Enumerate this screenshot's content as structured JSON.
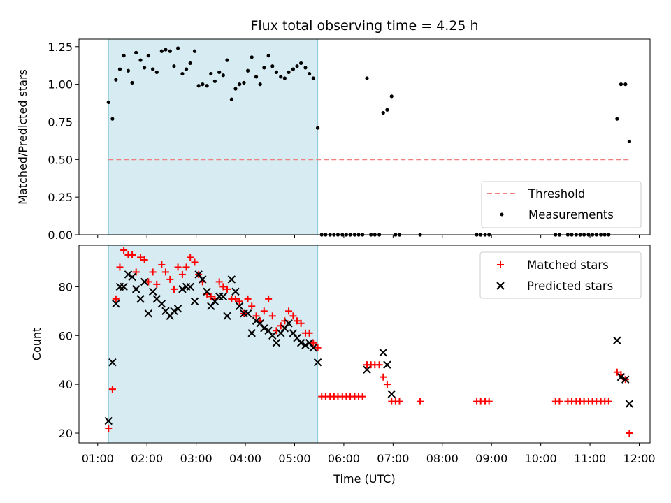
{
  "chart_data": [
    {
      "type": "scatter",
      "title": "Flux total observing time = 4.25 h",
      "xlabel": "",
      "ylabel": "Matched/Predicted stars",
      "xlim": [
        0.62,
        12.22
      ],
      "ylim": [
        0,
        1.3
      ],
      "yticks": [
        0,
        0.25,
        0.5,
        0.75,
        1.0,
        1.25
      ],
      "ytick_labels": [
        "0.00",
        "0.25",
        "0.50",
        "0.75",
        "1.00",
        "1.25"
      ],
      "shaded_span": [
        1.22,
        5.47
      ],
      "threshold": {
        "name": "Threshold",
        "value": 0.5,
        "x_range": [
          1.22,
          11.82
        ],
        "color": "#f08080"
      },
      "legend": [
        "Threshold",
        "Measurements"
      ],
      "legend_position": "lower-right",
      "series": [
        {
          "name": "Measurements",
          "color": "#000000",
          "points": [
            [
              1.22,
              0.88
            ],
            [
              1.3,
              0.77
            ],
            [
              1.37,
              1.03
            ],
            [
              1.45,
              1.1
            ],
            [
              1.53,
              1.19
            ],
            [
              1.62,
              1.09
            ],
            [
              1.7,
              1.01
            ],
            [
              1.78,
              1.21
            ],
            [
              1.87,
              1.16
            ],
            [
              1.95,
              1.11
            ],
            [
              2.03,
              1.19
            ],
            [
              2.12,
              1.1
            ],
            [
              2.2,
              1.08
            ],
            [
              2.3,
              1.22
            ],
            [
              2.38,
              1.23
            ],
            [
              2.47,
              1.22
            ],
            [
              2.55,
              1.12
            ],
            [
              2.63,
              1.24
            ],
            [
              2.72,
              1.07
            ],
            [
              2.8,
              1.1
            ],
            [
              2.88,
              1.14
            ],
            [
              2.97,
              1.22
            ],
            [
              3.05,
              0.99
            ],
            [
              3.13,
              1.0
            ],
            [
              3.22,
              0.99
            ],
            [
              3.3,
              1.07
            ],
            [
              3.38,
              1.02
            ],
            [
              3.47,
              1.08
            ],
            [
              3.55,
              1.06
            ],
            [
              3.63,
              1.16
            ],
            [
              3.72,
              0.9
            ],
            [
              3.8,
              0.97
            ],
            [
              3.88,
              1.0
            ],
            [
              3.97,
              1.01
            ],
            [
              4.05,
              1.09
            ],
            [
              4.13,
              1.18
            ],
            [
              4.22,
              1.05
            ],
            [
              4.3,
              1.0
            ],
            [
              4.38,
              1.11
            ],
            [
              4.47,
              1.19
            ],
            [
              4.55,
              1.12
            ],
            [
              4.63,
              1.08
            ],
            [
              4.72,
              1.05
            ],
            [
              4.8,
              1.04
            ],
            [
              4.88,
              1.08
            ],
            [
              4.97,
              1.1
            ],
            [
              5.05,
              1.12
            ],
            [
              5.13,
              1.14
            ],
            [
              5.22,
              1.11
            ],
            [
              5.3,
              1.07
            ],
            [
              5.38,
              1.04
            ],
            [
              5.47,
              0.71
            ],
            [
              5.55,
              0
            ],
            [
              5.63,
              0
            ],
            [
              5.72,
              0
            ],
            [
              5.8,
              0
            ],
            [
              5.88,
              0
            ],
            [
              5.97,
              0
            ],
            [
              6.05,
              0
            ],
            [
              6.13,
              0
            ],
            [
              6.22,
              0
            ],
            [
              6.3,
              0
            ],
            [
              6.38,
              0
            ],
            [
              6.47,
              1.04
            ],
            [
              6.55,
              0
            ],
            [
              6.63,
              0
            ],
            [
              6.72,
              0
            ],
            [
              6.8,
              0.81
            ],
            [
              6.88,
              0.83
            ],
            [
              6.97,
              0.92
            ],
            [
              7.05,
              0
            ],
            [
              7.13,
              0
            ],
            [
              7.55,
              0
            ],
            [
              8.7,
              0
            ],
            [
              8.78,
              0
            ],
            [
              8.87,
              0
            ],
            [
              8.95,
              0
            ],
            [
              10.3,
              0
            ],
            [
              10.38,
              0
            ],
            [
              10.55,
              0
            ],
            [
              10.63,
              0
            ],
            [
              10.72,
              0
            ],
            [
              10.8,
              0
            ],
            [
              10.88,
              0
            ],
            [
              10.97,
              0
            ],
            [
              11.05,
              0
            ],
            [
              11.13,
              0
            ],
            [
              11.22,
              0
            ],
            [
              11.3,
              0
            ],
            [
              11.38,
              0
            ],
            [
              11.55,
              0.77
            ],
            [
              11.63,
              1.0
            ],
            [
              11.72,
              1.0
            ],
            [
              11.8,
              0.62
            ]
          ]
        }
      ]
    },
    {
      "type": "scatter",
      "title": "",
      "xlabel": "Time (UTC)",
      "ylabel": "Count",
      "xlim": [
        0.62,
        12.22
      ],
      "ylim": [
        16,
        97
      ],
      "yticks": [
        20,
        40,
        60,
        80
      ],
      "ytick_labels": [
        "20",
        "40",
        "60",
        "80"
      ],
      "xticks": [
        1,
        2,
        3,
        4,
        5,
        6,
        7,
        8,
        9,
        10,
        11,
        12
      ],
      "xtick_labels": [
        "01:00",
        "02:00",
        "03:00",
        "04:00",
        "05:00",
        "06:00",
        "07:00",
        "08:00",
        "09:00",
        "10:00",
        "11:00",
        "12:00"
      ],
      "shaded_span": [
        1.22,
        5.47
      ],
      "legend": [
        "Matched stars",
        "Predicted stars"
      ],
      "legend_position": "upper-right",
      "series": [
        {
          "name": "Matched stars",
          "marker": "+",
          "color": "#ff0000",
          "points": [
            [
              1.22,
              22
            ],
            [
              1.3,
              38
            ],
            [
              1.37,
              75
            ],
            [
              1.45,
              88
            ],
            [
              1.53,
              95
            ],
            [
              1.62,
              93
            ],
            [
              1.7,
              93
            ],
            [
              1.78,
              86
            ],
            [
              1.87,
              92
            ],
            [
              1.95,
              91
            ],
            [
              2.03,
              82
            ],
            [
              2.12,
              86
            ],
            [
              2.2,
              81
            ],
            [
              2.3,
              89
            ],
            [
              2.38,
              86
            ],
            [
              2.47,
              83
            ],
            [
              2.55,
              79
            ],
            [
              2.63,
              88
            ],
            [
              2.72,
              85
            ],
            [
              2.8,
              88
            ],
            [
              2.88,
              92
            ],
            [
              2.97,
              90
            ],
            [
              3.05,
              85
            ],
            [
              3.13,
              82
            ],
            [
              3.22,
              77
            ],
            [
              3.3,
              76
            ],
            [
              3.38,
              75
            ],
            [
              3.47,
              82
            ],
            [
              3.55,
              80
            ],
            [
              3.63,
              79
            ],
            [
              3.72,
              75
            ],
            [
              3.8,
              75
            ],
            [
              3.88,
              74
            ],
            [
              3.97,
              69
            ],
            [
              4.05,
              75
            ],
            [
              4.13,
              72
            ],
            [
              4.22,
              68
            ],
            [
              4.3,
              66
            ],
            [
              4.38,
              70
            ],
            [
              4.47,
              75
            ],
            [
              4.55,
              68
            ],
            [
              4.63,
              62
            ],
            [
              4.72,
              64
            ],
            [
              4.8,
              66
            ],
            [
              4.88,
              70
            ],
            [
              4.97,
              68
            ],
            [
              5.05,
              66
            ],
            [
              5.13,
              65
            ],
            [
              5.22,
              61
            ],
            [
              5.3,
              61
            ],
            [
              5.38,
              57
            ],
            [
              5.47,
              55
            ],
            [
              5.55,
              35
            ],
            [
              5.63,
              35
            ],
            [
              5.72,
              35
            ],
            [
              5.8,
              35
            ],
            [
              5.88,
              35
            ],
            [
              5.97,
              35
            ],
            [
              6.05,
              35
            ],
            [
              6.13,
              35
            ],
            [
              6.22,
              35
            ],
            [
              6.3,
              35
            ],
            [
              6.38,
              35
            ],
            [
              6.47,
              48
            ],
            [
              6.55,
              48
            ],
            [
              6.63,
              48
            ],
            [
              6.72,
              48
            ],
            [
              6.8,
              43
            ],
            [
              6.88,
              40
            ],
            [
              6.97,
              33
            ],
            [
              7.05,
              33
            ],
            [
              7.13,
              33
            ],
            [
              7.55,
              33
            ],
            [
              8.7,
              33
            ],
            [
              8.78,
              33
            ],
            [
              8.87,
              33
            ],
            [
              8.95,
              33
            ],
            [
              10.3,
              33
            ],
            [
              10.38,
              33
            ],
            [
              10.55,
              33
            ],
            [
              10.63,
              33
            ],
            [
              10.72,
              33
            ],
            [
              10.8,
              33
            ],
            [
              10.88,
              33
            ],
            [
              10.97,
              33
            ],
            [
              11.05,
              33
            ],
            [
              11.13,
              33
            ],
            [
              11.22,
              33
            ],
            [
              11.3,
              33
            ],
            [
              11.38,
              33
            ],
            [
              11.55,
              45
            ],
            [
              11.63,
              44
            ],
            [
              11.72,
              42
            ],
            [
              11.8,
              20
            ]
          ]
        },
        {
          "name": "Predicted stars",
          "marker": "x",
          "color": "#000000",
          "points": [
            [
              1.22,
              25
            ],
            [
              1.3,
              49
            ],
            [
              1.37,
              73
            ],
            [
              1.45,
              80
            ],
            [
              1.53,
              80
            ],
            [
              1.62,
              85
            ],
            [
              1.7,
              84
            ],
            [
              1.78,
              79
            ],
            [
              1.87,
              75
            ],
            [
              1.95,
              82
            ],
            [
              2.03,
              69
            ],
            [
              2.12,
              78
            ],
            [
              2.2,
              75
            ],
            [
              2.3,
              73
            ],
            [
              2.38,
              70
            ],
            [
              2.47,
              68
            ],
            [
              2.55,
              70
            ],
            [
              2.63,
              71
            ],
            [
              2.72,
              79
            ],
            [
              2.8,
              80
            ],
            [
              2.88,
              80
            ],
            [
              2.97,
              74
            ],
            [
              3.05,
              85
            ],
            [
              3.13,
              83
            ],
            [
              3.22,
              78
            ],
            [
              3.3,
              72
            ],
            [
              3.38,
              74
            ],
            [
              3.47,
              76
            ],
            [
              3.55,
              76
            ],
            [
              3.63,
              68
            ],
            [
              3.72,
              83
            ],
            [
              3.8,
              78
            ],
            [
              3.88,
              72
            ],
            [
              3.97,
              69
            ],
            [
              4.05,
              69
            ],
            [
              4.13,
              61
            ],
            [
              4.22,
              66
            ],
            [
              4.3,
              65
            ],
            [
              4.38,
              63
            ],
            [
              4.47,
              62
            ],
            [
              4.55,
              60
            ],
            [
              4.63,
              57
            ],
            [
              4.72,
              61
            ],
            [
              4.8,
              63
            ],
            [
              4.88,
              65
            ],
            [
              4.97,
              61
            ],
            [
              5.05,
              59
            ],
            [
              5.13,
              57
            ],
            [
              5.22,
              56
            ],
            [
              5.3,
              57
            ],
            [
              5.38,
              55
            ],
            [
              5.47,
              49
            ],
            [
              6.47,
              46
            ],
            [
              6.8,
              53
            ],
            [
              6.88,
              48
            ],
            [
              6.97,
              36
            ],
            [
              11.55,
              58
            ],
            [
              11.63,
              43
            ],
            [
              11.72,
              42
            ],
            [
              11.8,
              32
            ]
          ]
        }
      ]
    }
  ]
}
